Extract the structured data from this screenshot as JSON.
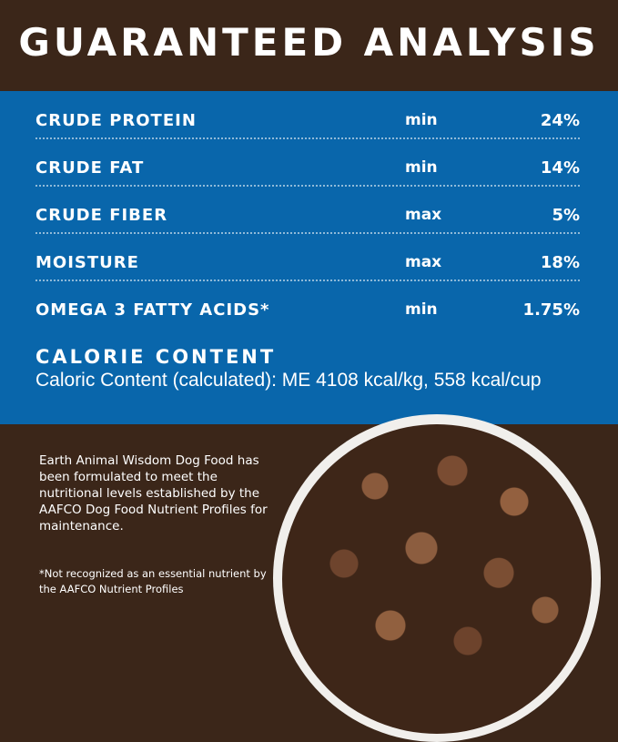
{
  "title": "GUARANTEED ANALYSIS",
  "rows": [
    {
      "name": "CRUDE PROTEIN",
      "qualifier": "min",
      "value": "24%"
    },
    {
      "name": "CRUDE FAT",
      "qualifier": "min",
      "value": "14%"
    },
    {
      "name": "CRUDE FIBER",
      "qualifier": "max",
      "value": "5%"
    },
    {
      "name": "MOISTURE",
      "qualifier": "max",
      "value": "18%"
    },
    {
      "name": "OMEGA 3 FATTY ACIDS*",
      "qualifier": "min",
      "value": "1.75%"
    }
  ],
  "calorie": {
    "heading": "CALORIE CONTENT",
    "text": "Caloric Content (calculated): ME 4108 kcal/kg, 558 kcal/cup"
  },
  "blurb": "Earth Animal Wisdom Dog Food has been formulated to meet the nutritional levels established by the AAFCO Dog Food Nutrient Profiles for maintenance.",
  "footnote": "*Not recognized as an essential nutrient by the AAFCO Nutrient Profiles",
  "colors": {
    "blue": "#0966ab",
    "brown": "#3b2619"
  }
}
